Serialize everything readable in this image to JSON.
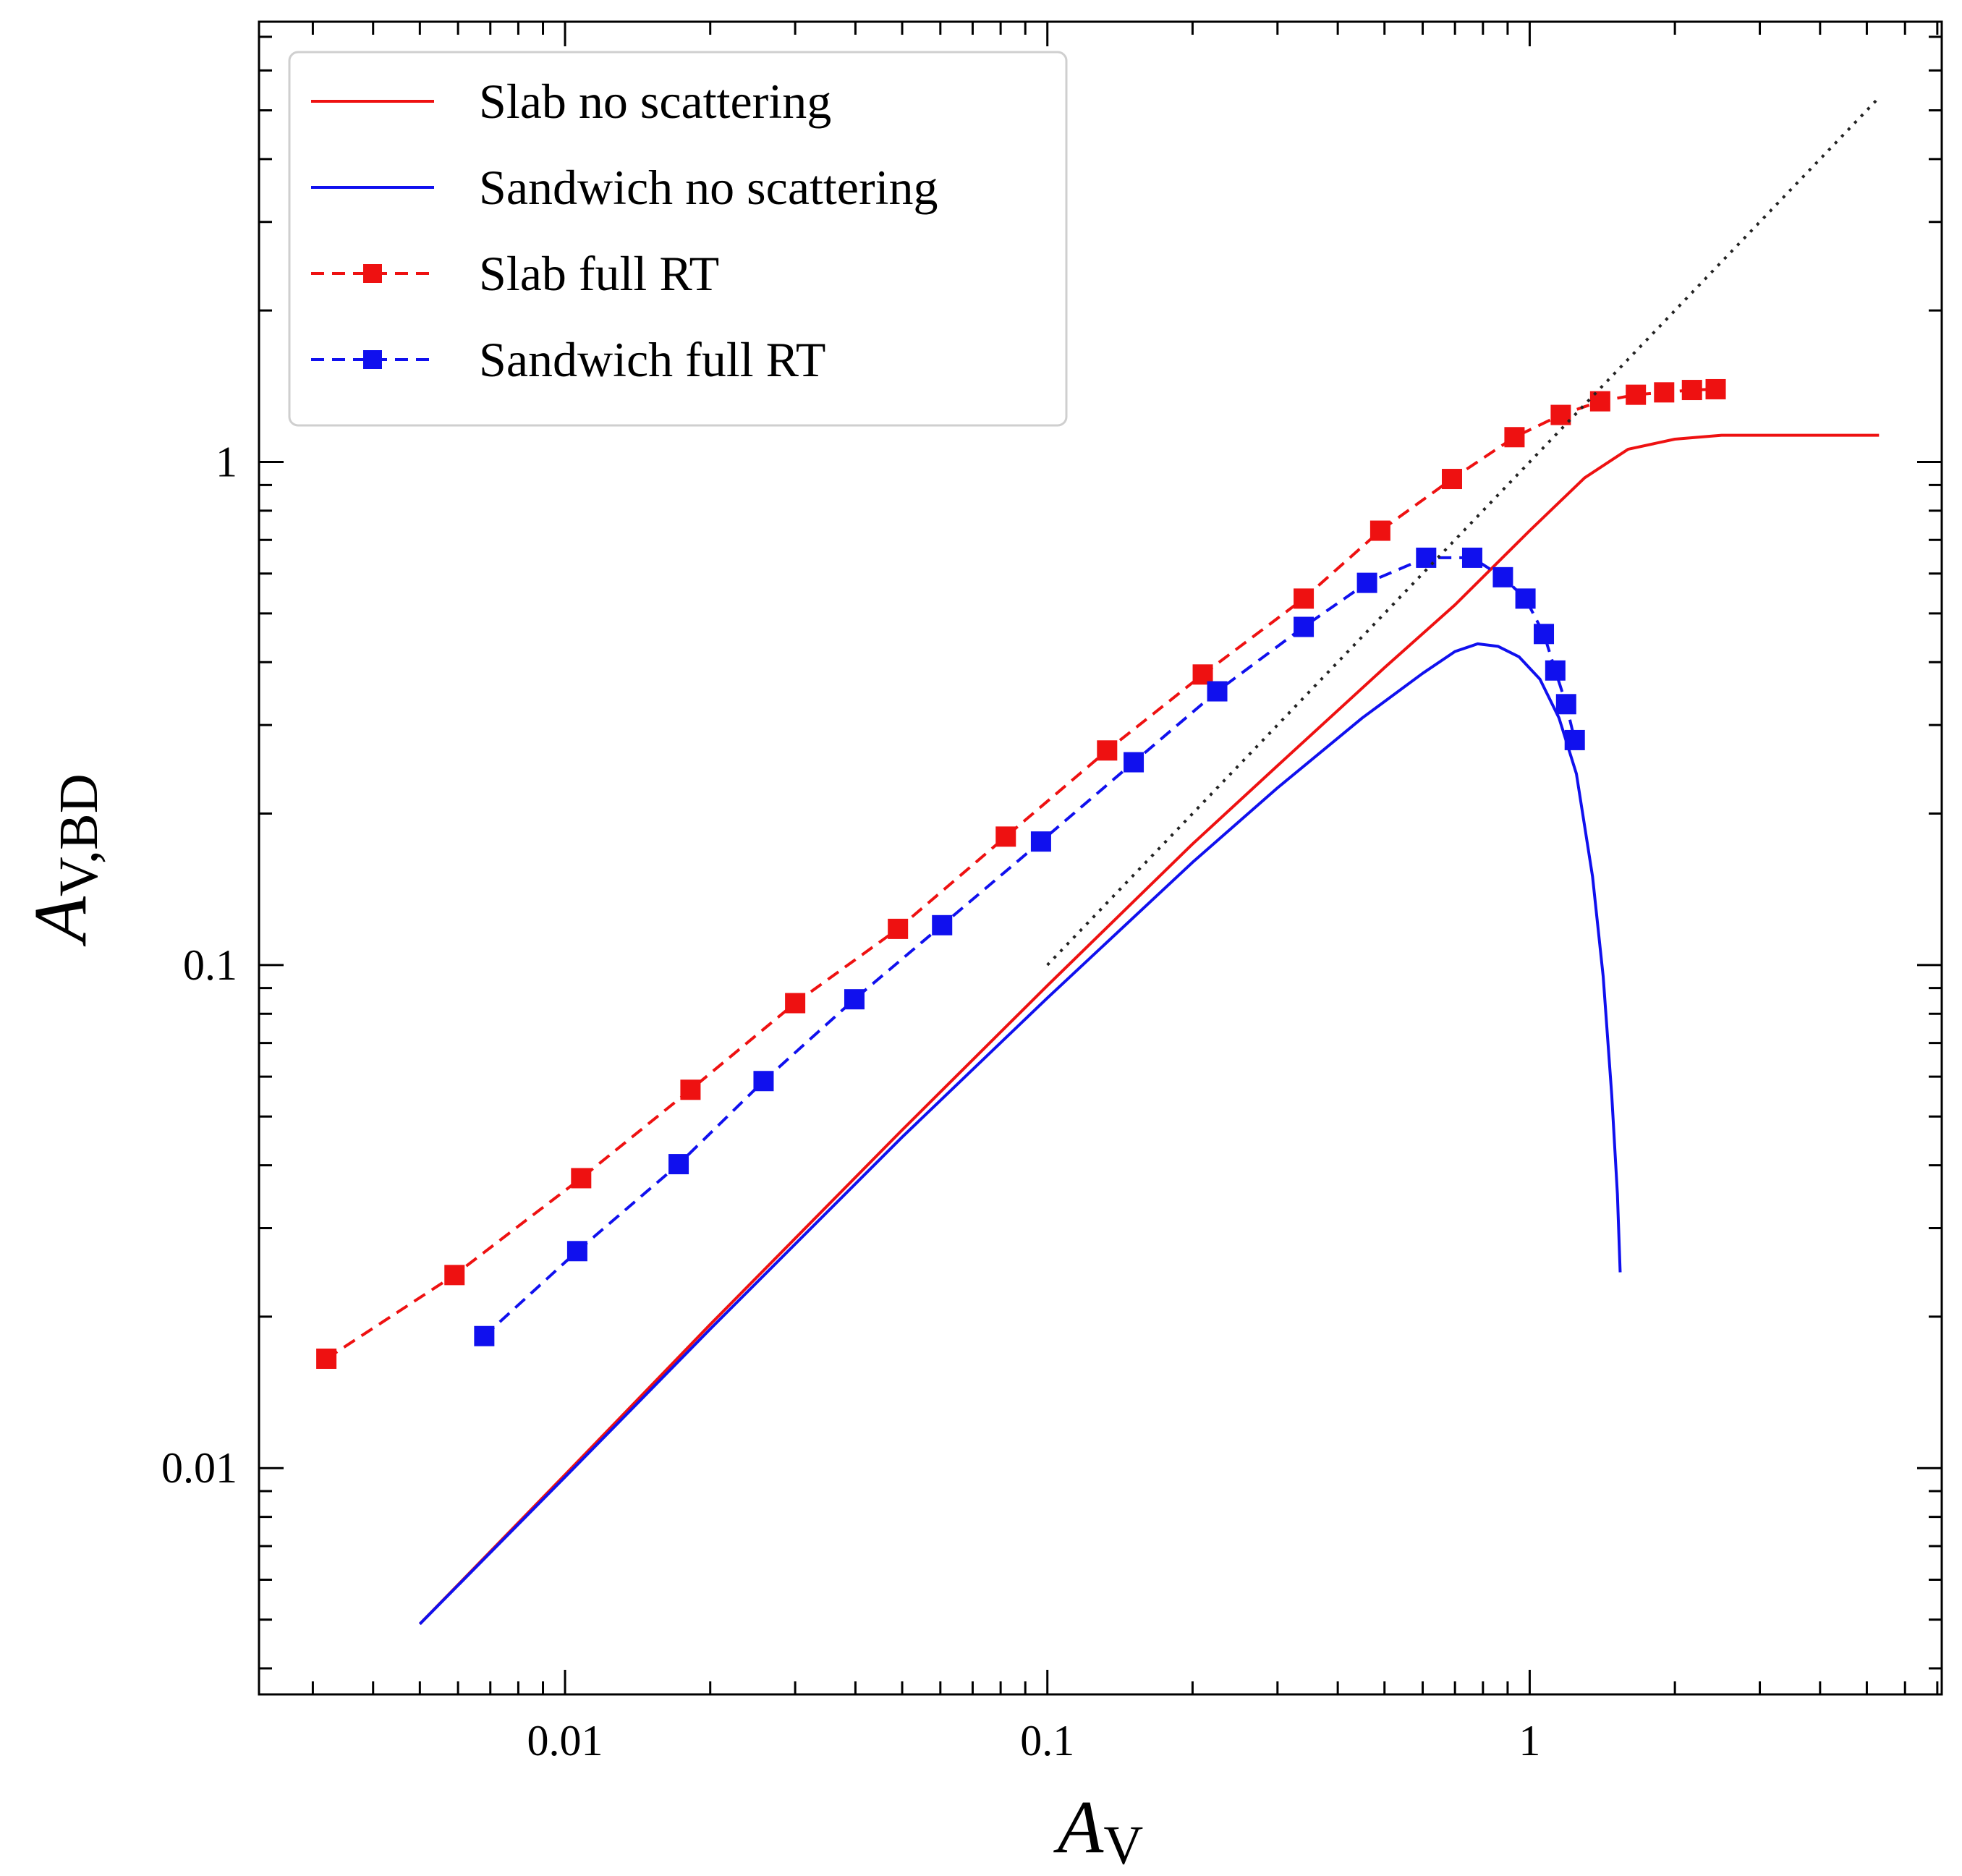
{
  "chart_data": {
    "type": "line",
    "title": "",
    "xlabel": {
      "main": "A",
      "sub": "V"
    },
    "ylabel": {
      "main": "A",
      "sub": "V,BD"
    },
    "xscale": "log",
    "yscale": "log",
    "xlim": [
      0.00232,
      7.15
    ],
    "ylim": [
      0.00355,
      7.5
    ],
    "xticks": [
      {
        "value": 0.01,
        "label": "0.01"
      },
      {
        "value": 0.1,
        "label": "0.1"
      },
      {
        "value": 1,
        "label": "1"
      }
    ],
    "yticks": [
      {
        "value": 0.01,
        "label": "0.01"
      },
      {
        "value": 0.1,
        "label": "0.1"
      },
      {
        "value": 1,
        "label": "1"
      }
    ],
    "legend_position": "top-left",
    "series": [
      {
        "name": "Slab no scattering",
        "color": "#ee1111",
        "style": "solid",
        "marker": "none",
        "x": [
          0.005,
          0.01,
          0.02,
          0.05,
          0.1,
          0.2,
          0.3,
          0.5,
          0.7,
          1.0,
          1.3,
          1.6,
          2.0,
          2.5,
          3.0,
          4.0,
          5.3
        ],
        "y": [
          0.0049,
          0.0097,
          0.0193,
          0.047,
          0.091,
          0.174,
          0.249,
          0.39,
          0.52,
          0.73,
          0.93,
          1.06,
          1.11,
          1.13,
          1.13,
          1.13,
          1.13
        ]
      },
      {
        "name": "Sandwich no scattering",
        "color": "#1010ee",
        "style": "solid",
        "marker": "none",
        "x": [
          0.005,
          0.01,
          0.02,
          0.05,
          0.1,
          0.2,
          0.3,
          0.45,
          0.6,
          0.7,
          0.78,
          0.86,
          0.95,
          1.05,
          1.15,
          1.25,
          1.35,
          1.42,
          1.48,
          1.52,
          1.54
        ],
        "y": [
          0.0049,
          0.0096,
          0.0189,
          0.0455,
          0.086,
          0.16,
          0.225,
          0.31,
          0.38,
          0.42,
          0.435,
          0.43,
          0.41,
          0.37,
          0.31,
          0.24,
          0.15,
          0.095,
          0.055,
          0.035,
          0.0245
        ]
      },
      {
        "name": "Slab full RT",
        "color": "#ee1111",
        "style": "dashed",
        "marker": "square",
        "x": [
          0.0032,
          0.0059,
          0.0108,
          0.0182,
          0.03,
          0.049,
          0.082,
          0.133,
          0.21,
          0.34,
          0.49,
          0.69,
          0.93,
          1.16,
          1.4,
          1.66,
          1.9,
          2.17,
          2.43
        ],
        "y": [
          0.0165,
          0.0242,
          0.0377,
          0.0565,
          0.084,
          0.118,
          0.18,
          0.267,
          0.378,
          0.535,
          0.73,
          0.925,
          1.12,
          1.24,
          1.32,
          1.36,
          1.375,
          1.39,
          1.395
        ]
      },
      {
        "name": "Sandwich full RT",
        "color": "#1010ee",
        "style": "dashed",
        "marker": "square",
        "x": [
          0.0068,
          0.0106,
          0.0172,
          0.0258,
          0.0398,
          0.0605,
          0.097,
          0.151,
          0.225,
          0.34,
          0.46,
          0.61,
          0.76,
          0.88,
          0.98,
          1.07,
          1.13,
          1.19,
          1.24
        ],
        "y": [
          0.0183,
          0.027,
          0.0402,
          0.0588,
          0.0855,
          0.12,
          0.176,
          0.253,
          0.35,
          0.47,
          0.575,
          0.645,
          0.645,
          0.59,
          0.535,
          0.455,
          0.385,
          0.33,
          0.28
        ]
      },
      {
        "name": "1:1 line",
        "color": "#222222",
        "style": "dotted",
        "marker": "none",
        "legend": false,
        "x": [
          0.1,
          5.3
        ],
        "y": [
          0.1,
          5.3
        ]
      }
    ]
  }
}
